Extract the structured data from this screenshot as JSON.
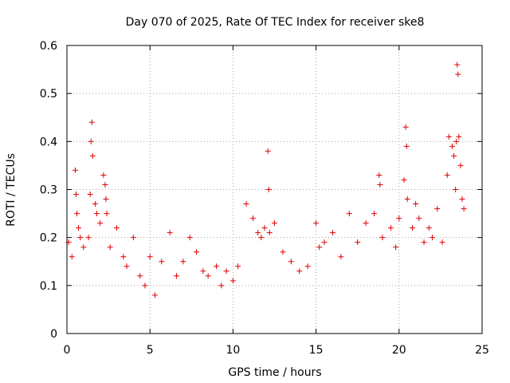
{
  "chart_data": {
    "type": "scatter",
    "title": "Day 070 of 2025, Rate Of TEC Index for receiver ske8",
    "xlabel": "GPS time / hours",
    "ylabel": "ROTI / TECUs",
    "xlim": [
      0,
      25
    ],
    "ylim": [
      0,
      0.6
    ],
    "xticks": [
      0,
      5,
      10,
      15,
      20,
      25
    ],
    "xtick_labels": [
      "0",
      "5",
      "10",
      "15",
      "20",
      "25"
    ],
    "yticks": [
      0,
      0.1,
      0.2,
      0.3,
      0.4,
      0.5,
      0.6
    ],
    "ytick_labels": [
      "0",
      "0.1",
      "0.2",
      "0.3",
      "0.4",
      "0.5",
      "0.6"
    ],
    "grid": true,
    "legend": "none",
    "marker": "+",
    "color": "#e00000",
    "series": [
      {
        "x": [
          0.1,
          0.3,
          0.5,
          0.55,
          0.6,
          0.7,
          0.8,
          1.0,
          1.3,
          1.4,
          1.45,
          1.5,
          1.55,
          1.7,
          1.8,
          2.0,
          2.2,
          2.3,
          2.35,
          2.4,
          2.6,
          3.0,
          3.4,
          3.6,
          4.0,
          4.4,
          4.7,
          5.0,
          5.3,
          5.7,
          6.2,
          6.6,
          7.0,
          7.4,
          7.8,
          8.2,
          8.5,
          9.0,
          9.3,
          9.6,
          10.0,
          10.3,
          10.8,
          11.2,
          11.5,
          11.7,
          11.9,
          12.1,
          12.15,
          12.2,
          12.5,
          13.0,
          13.5,
          14.0,
          14.5,
          15.0,
          15.2,
          15.5,
          16.0,
          16.5,
          17.0,
          17.5,
          18.0,
          18.5,
          18.8,
          18.85,
          19.0,
          19.5,
          19.8,
          20.0,
          20.3,
          20.4,
          20.45,
          20.5,
          20.8,
          21.0,
          21.2,
          21.5,
          21.8,
          22.0,
          22.3,
          22.6,
          22.9,
          23.0,
          23.2,
          23.3,
          23.4,
          23.45,
          23.5,
          23.55,
          23.6,
          23.7,
          23.8,
          23.9
        ],
        "y": [
          0.19,
          0.16,
          0.34,
          0.29,
          0.25,
          0.22,
          0.2,
          0.18,
          0.2,
          0.29,
          0.4,
          0.44,
          0.37,
          0.27,
          0.25,
          0.23,
          0.33,
          0.31,
          0.28,
          0.25,
          0.18,
          0.22,
          0.16,
          0.14,
          0.2,
          0.12,
          0.1,
          0.16,
          0.08,
          0.15,
          0.21,
          0.12,
          0.15,
          0.2,
          0.17,
          0.13,
          0.12,
          0.14,
          0.1,
          0.13,
          0.11,
          0.14,
          0.27,
          0.24,
          0.21,
          0.2,
          0.22,
          0.38,
          0.3,
          0.21,
          0.23,
          0.17,
          0.15,
          0.13,
          0.14,
          0.23,
          0.18,
          0.19,
          0.21,
          0.16,
          0.25,
          0.19,
          0.23,
          0.25,
          0.33,
          0.31,
          0.2,
          0.22,
          0.18,
          0.24,
          0.32,
          0.43,
          0.39,
          0.28,
          0.22,
          0.27,
          0.24,
          0.19,
          0.22,
          0.2,
          0.26,
          0.19,
          0.33,
          0.41,
          0.39,
          0.37,
          0.3,
          0.4,
          0.56,
          0.54,
          0.41,
          0.35,
          0.28,
          0.26
        ]
      }
    ]
  }
}
